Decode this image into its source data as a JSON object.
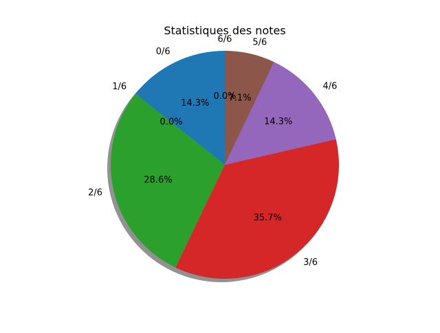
{
  "chart_data": {
    "type": "pie",
    "title": "Statistiques des notes",
    "categories": [
      "0/6",
      "1/6",
      "2/6",
      "3/6",
      "4/6",
      "5/6",
      "6/6"
    ],
    "values": [
      14.3,
      0.0,
      28.6,
      35.7,
      14.3,
      7.1,
      0.0
    ],
    "percent_labels": [
      "14.3%",
      "0.0%",
      "28.6%",
      "35.7%",
      "14.3%",
      "7.1%",
      "0.0%"
    ],
    "colors": [
      "#1f77b4",
      "#ff7f0e",
      "#2ca02c",
      "#d62728",
      "#9467bd",
      "#8c564b",
      "#e377c2"
    ],
    "shadow": true,
    "start_angle_deg": 90,
    "direction": "counterclockwise",
    "legend": "none"
  }
}
